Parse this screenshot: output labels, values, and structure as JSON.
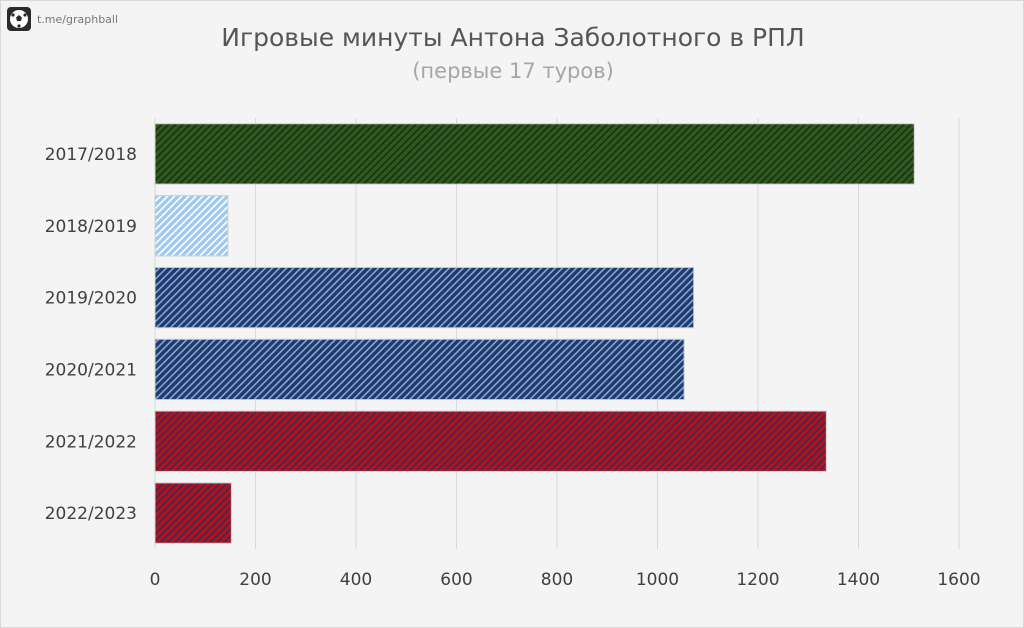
{
  "brand": {
    "handle": "t.me/graphball",
    "logo_icon": "soccer-ball-icon"
  },
  "chart_data": {
    "type": "bar",
    "orientation": "horizontal",
    "title": "Игровые минуты Антона Заболотного в РПЛ",
    "subtitle": "(первые 17 туров)",
    "categories": [
      "2017/2018",
      "2018/2019",
      "2019/2020",
      "2020/2021",
      "2021/2022",
      "2022/2023"
    ],
    "values": [
      1511,
      145,
      1072,
      1053,
      1336,
      152
    ],
    "bar_colors": [
      "#2e5a1e",
      "#9fc9ec",
      "#1f3a6e",
      "#1f3a6e",
      "#b0121e",
      "#b0121e"
    ],
    "bar_stripe_colors": [
      "#1b2d14",
      "#ffffff",
      "#8aa5cf",
      "#8aa5cf",
      "#3a2a55",
      "#3a2a55"
    ],
    "xlim": [
      0,
      1600
    ],
    "xticks": [
      "0",
      "200",
      "400",
      "600",
      "800",
      "1000",
      "1200",
      "1400",
      "1600"
    ],
    "grid": "vertical",
    "xlabel": "",
    "ylabel": ""
  }
}
